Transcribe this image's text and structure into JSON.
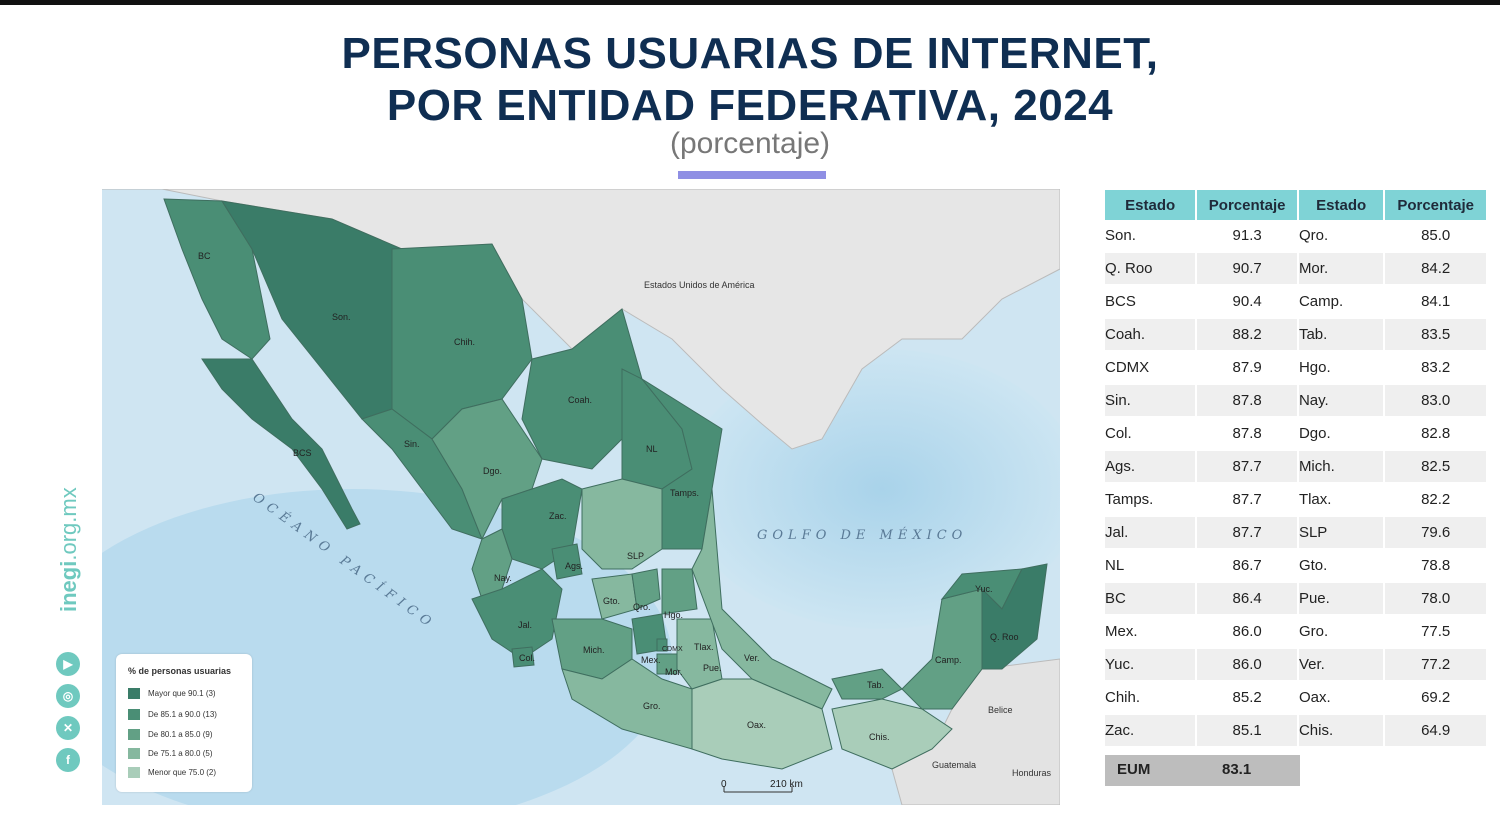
{
  "title_line1": "PERSONAS USUARIAS DE INTERNET,",
  "title_line2": "POR ENTIDAD FEDERATIVA, 2024",
  "subtitle": "(porcentaje)",
  "map": {
    "labels": {
      "usa": "Estados Unidos de América",
      "gulf": "GOLFO DE MÉXICO",
      "pacific": "OCÉANO PACÍFICO",
      "belice": "Belice",
      "guatemala": "Guatemala",
      "honduras": "Honduras",
      "scale_zero": "0",
      "scale_km": "210 km"
    },
    "states": {
      "bc": "BC",
      "son": "Son.",
      "chih": "Chih.",
      "coah": "Coah.",
      "bcs": "BCS",
      "sin": "Sin.",
      "dgo": "Dgo.",
      "nl": "NL",
      "tamps": "Tamps.",
      "zac": "Zac.",
      "slp": "SLP",
      "nay": "Nay.",
      "ags": "Ags.",
      "gto": "Gto.",
      "qro": "Qro.",
      "hgo": "Hgo.",
      "jal": "Jal.",
      "col": "Col.",
      "mich": "Mich.",
      "mex": "Mex.",
      "cdmx": "CDMX",
      "tlax": "Tlax.",
      "mor": "Mor.",
      "pue": "Pue.",
      "ver": "Ver.",
      "gro": "Gro.",
      "oax": "Oax.",
      "tab": "Tab.",
      "chis": "Chis.",
      "camp": "Camp.",
      "yuc": "Yuc.",
      "qroo": "Q. Roo"
    }
  },
  "legend": {
    "title": "% de personas usuarias",
    "items": [
      {
        "label": "Mayor que 90.1 (3)",
        "color": "#3a7c68"
      },
      {
        "label": "De 85.1 a 90.0 (13)",
        "color": "#4a8e75"
      },
      {
        "label": "De 80.1 a 85.0 (9)",
        "color": "#62a085"
      },
      {
        "label": "De 75.1 a 80.0 (5)",
        "color": "#86b89f"
      },
      {
        "label": "Menor que 75.0 (2)",
        "color": "#a9cdb9"
      }
    ]
  },
  "social": {
    "url_bold": "inegi",
    "url_rest": ".org.mx",
    "icons": [
      "youtube-icon",
      "instagram-icon",
      "x-icon",
      "facebook-icon"
    ]
  },
  "table": {
    "headers": [
      "Estado",
      "Porcentaje",
      "Estado",
      "Porcentaje"
    ],
    "rows": [
      [
        "Son.",
        "91.3",
        "Qro.",
        "85.0"
      ],
      [
        "Q. Roo",
        "90.7",
        "Mor.",
        "84.2"
      ],
      [
        "BCS",
        "90.4",
        "Camp.",
        "84.1"
      ],
      [
        "Coah.",
        "88.2",
        "Tab.",
        "83.5"
      ],
      [
        "CDMX",
        "87.9",
        "Hgo.",
        "83.2"
      ],
      [
        "Sin.",
        "87.8",
        "Nay.",
        "83.0"
      ],
      [
        "Col.",
        "87.8",
        "Dgo.",
        "82.8"
      ],
      [
        "Ags.",
        "87.7",
        "Mich.",
        "82.5"
      ],
      [
        "Tamps.",
        "87.7",
        "Tlax.",
        "82.2"
      ],
      [
        "Jal.",
        "87.7",
        "SLP",
        "79.6"
      ],
      [
        "NL",
        "86.7",
        "Gto.",
        "78.8"
      ],
      [
        "BC",
        "86.4",
        "Pue.",
        "78.0"
      ],
      [
        "Mex.",
        "86.0",
        "Gro.",
        "77.5"
      ],
      [
        "Yuc.",
        "86.0",
        "Ver.",
        "77.2"
      ],
      [
        "Chih.",
        "85.2",
        "Oax.",
        "69.2"
      ],
      [
        "Zac.",
        "85.1",
        "Chis.",
        "64.9"
      ]
    ],
    "eum_label": "EUM",
    "eum_value": "83.1"
  }
}
